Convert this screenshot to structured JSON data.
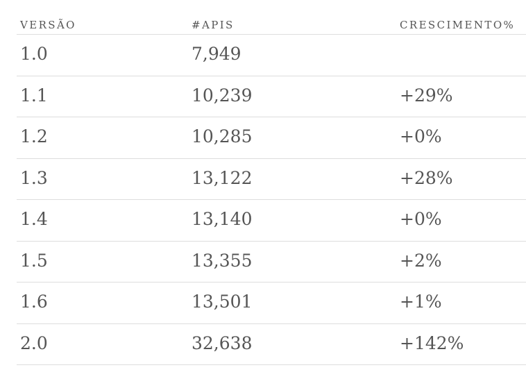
{
  "table": {
    "headers": [
      "VERSÃO",
      "#APIS",
      "CRESCIMENTO%"
    ],
    "rows": [
      {
        "version": "1.0",
        "apis": "7,949",
        "growth": ""
      },
      {
        "version": "1.1",
        "apis": "10,239",
        "growth": "+29%"
      },
      {
        "version": "1.2",
        "apis": "10,285",
        "growth": "+0%"
      },
      {
        "version": "1.3",
        "apis": "13,122",
        "growth": "+28%"
      },
      {
        "version": "1.4",
        "apis": "13,140",
        "growth": "+0%"
      },
      {
        "version": "1.5",
        "apis": "13,355",
        "growth": "+2%"
      },
      {
        "version": "1.6",
        "apis": "13,501",
        "growth": "+1%"
      },
      {
        "version": "2.0",
        "apis": "32,638",
        "growth": "+142%"
      }
    ]
  }
}
